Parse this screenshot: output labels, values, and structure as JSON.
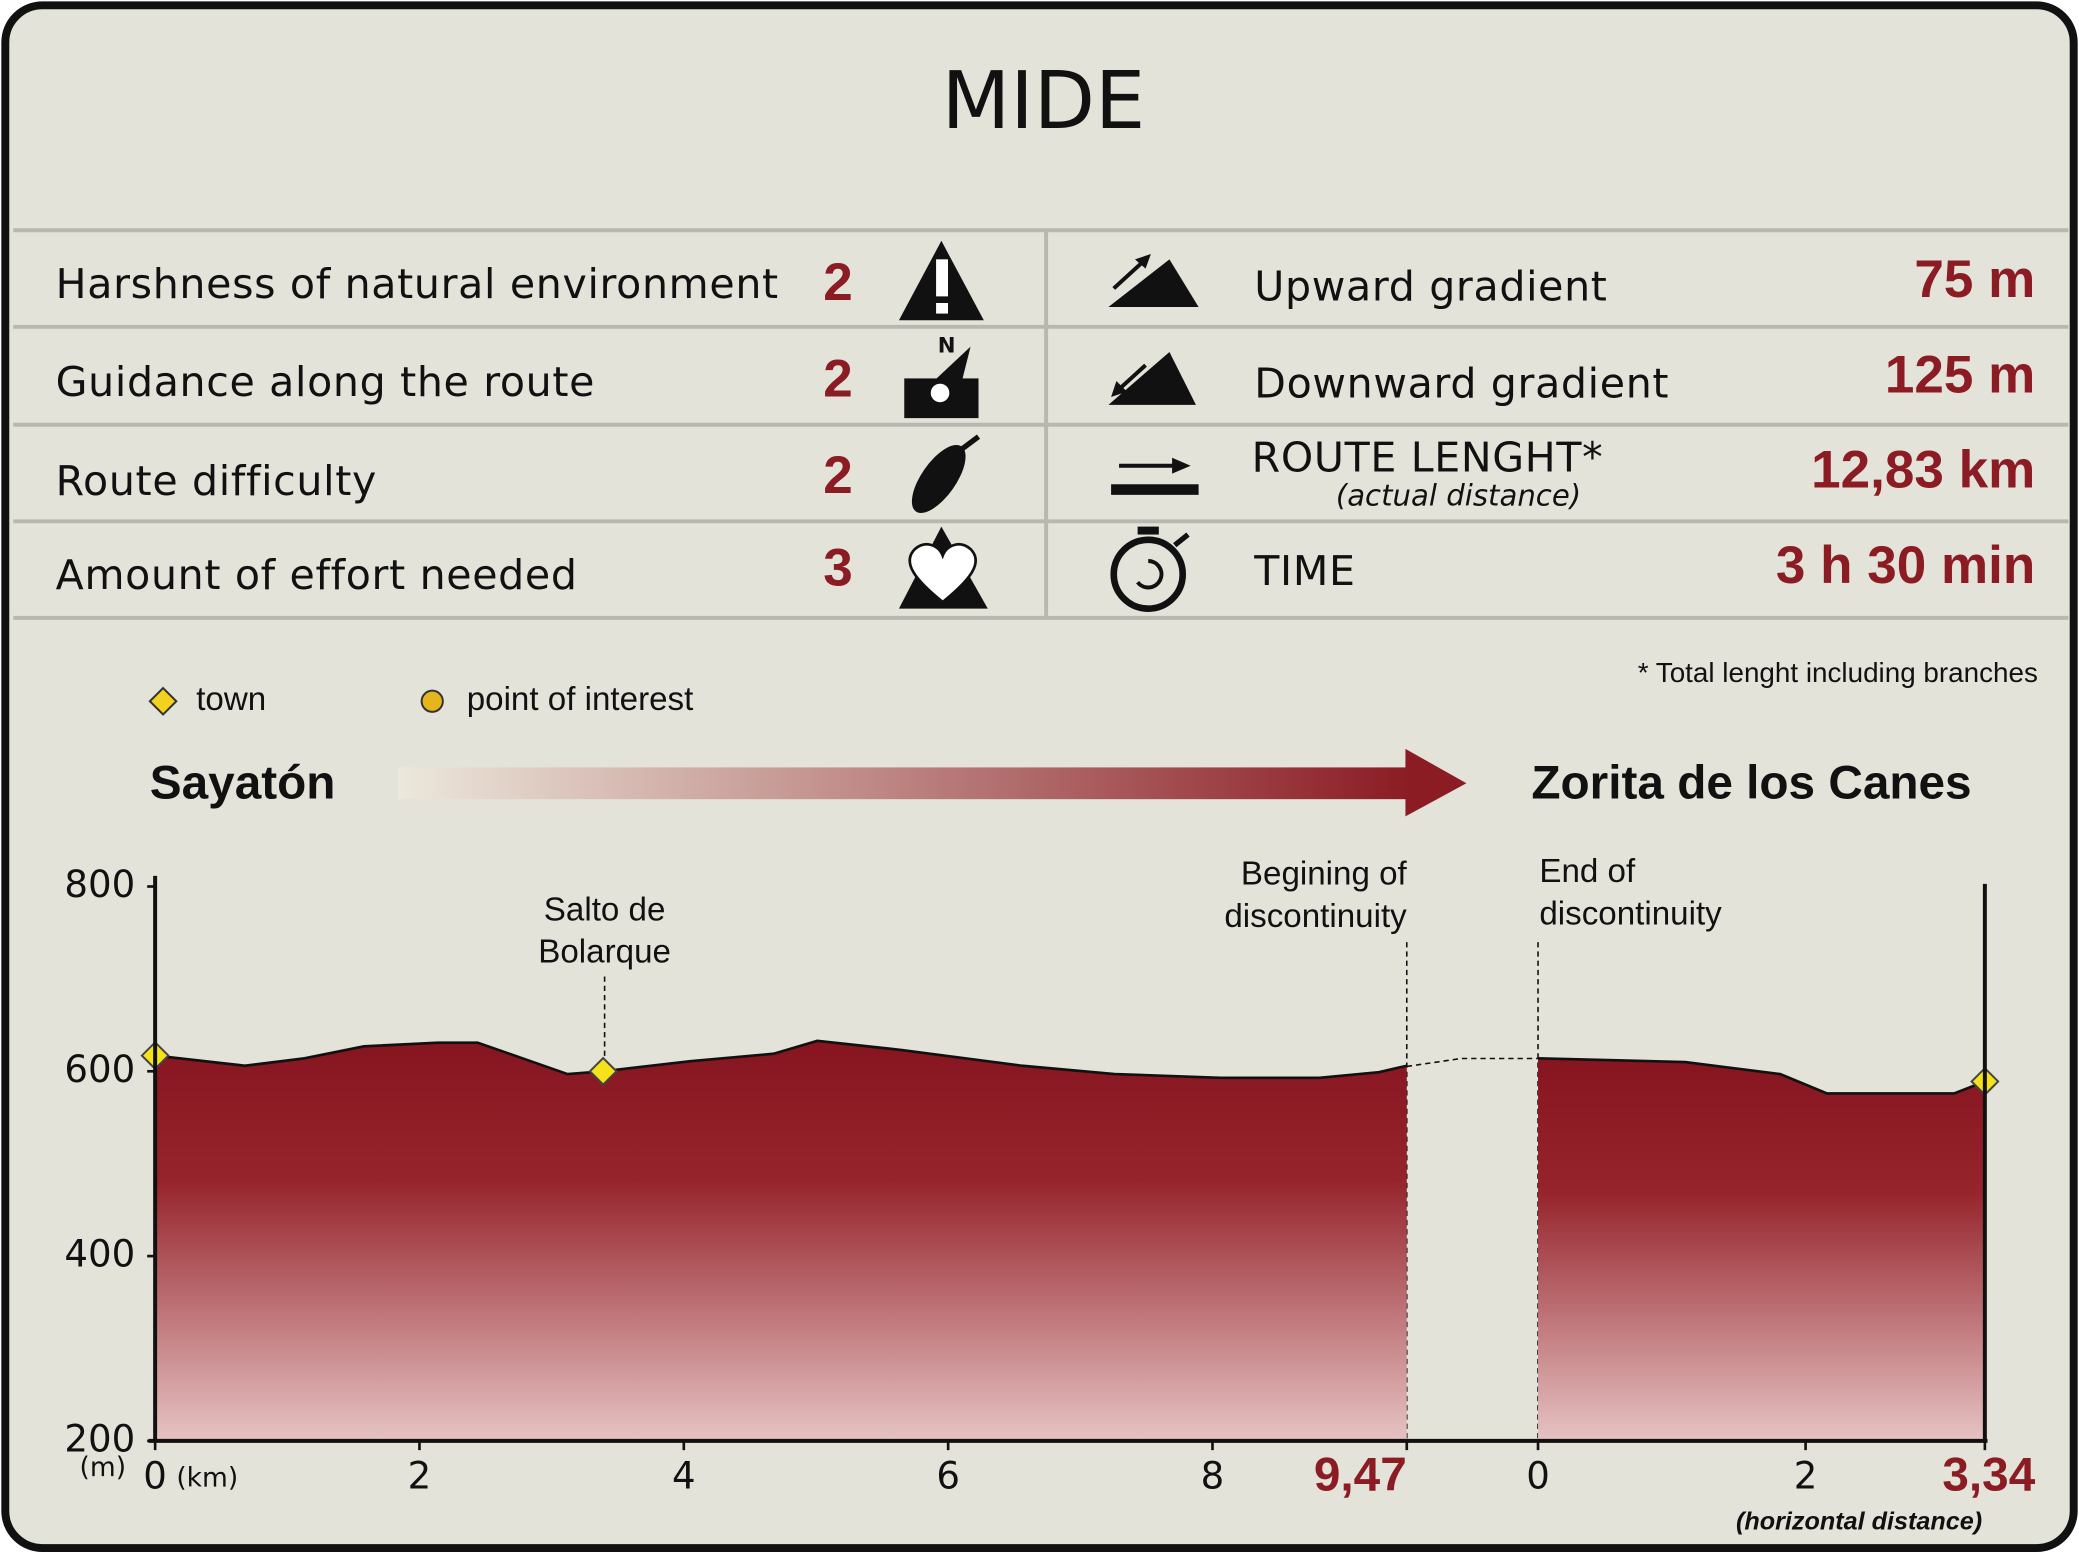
{
  "header": {
    "title": "MIDE"
  },
  "mide": {
    "left": [
      {
        "label": "Harshness of natural environment",
        "value": 2
      },
      {
        "label": "Guidance along the route",
        "value": 2
      },
      {
        "label": "Route difficulty",
        "value": 2
      },
      {
        "label": "Amount of effort needed",
        "value": 3
      }
    ],
    "right": [
      {
        "label": "Upward gradient",
        "value": "75 m"
      },
      {
        "label": "Downward gradient",
        "value": "125 m"
      },
      {
        "label": "ROUTE LENGHT*",
        "sublabel": "(actual distance)",
        "value": "12,83 km"
      },
      {
        "label": "TIME",
        "value": "3 h 30 min"
      }
    ],
    "note": "* Total lenght including branches"
  },
  "legend": {
    "town": "town",
    "poi": "point of interest"
  },
  "route": {
    "start": "Sayatón",
    "end": "Zorita de los Canes"
  },
  "chart_data": {
    "type": "area",
    "ylim": [
      200,
      800
    ],
    "yticks": [
      200,
      400,
      600,
      800
    ],
    "y_unit": "(m)",
    "x_unit": "(km)",
    "x_note": "(horizontal distance)",
    "segments": [
      {
        "xlim": [
          0,
          9.47
        ],
        "xticks": [
          0,
          2,
          4,
          6,
          8,
          {
            "value": 9.47,
            "label": "9,47"
          }
        ],
        "x": [
          0,
          0.68,
          1.13,
          1.58,
          2.14,
          2.44,
          3.12,
          3.39,
          4.05,
          4.68,
          5.01,
          5.65,
          6.56,
          7.26,
          8.06,
          8.81,
          9.26,
          9.47
        ],
        "values": [
          617,
          606,
          614,
          627,
          631,
          631,
          597,
          600,
          611,
          619,
          633,
          623,
          606,
          597,
          593,
          593,
          599,
          606
        ],
        "markers": [
          {
            "x": 0,
            "y": 617
          },
          {
            "x": 3.39,
            "y": 600
          }
        ]
      },
      {
        "xlim": [
          0,
          3.34
        ],
        "xticks": [
          0,
          2,
          {
            "value": 3.34,
            "label": "3,34"
          }
        ],
        "x": [
          0,
          1.1,
          1.81,
          2.16,
          3.11,
          3.34
        ],
        "values": [
          614,
          610,
          597,
          576,
          576,
          589
        ],
        "markers": [
          {
            "x": 3.34,
            "y": 589
          }
        ]
      }
    ],
    "annotations": {
      "poi": [
        "Salto de",
        "Bolarque"
      ],
      "begin": [
        "Begining of",
        "discontinuity"
      ],
      "end": [
        "End of",
        "discontinuity"
      ]
    }
  }
}
